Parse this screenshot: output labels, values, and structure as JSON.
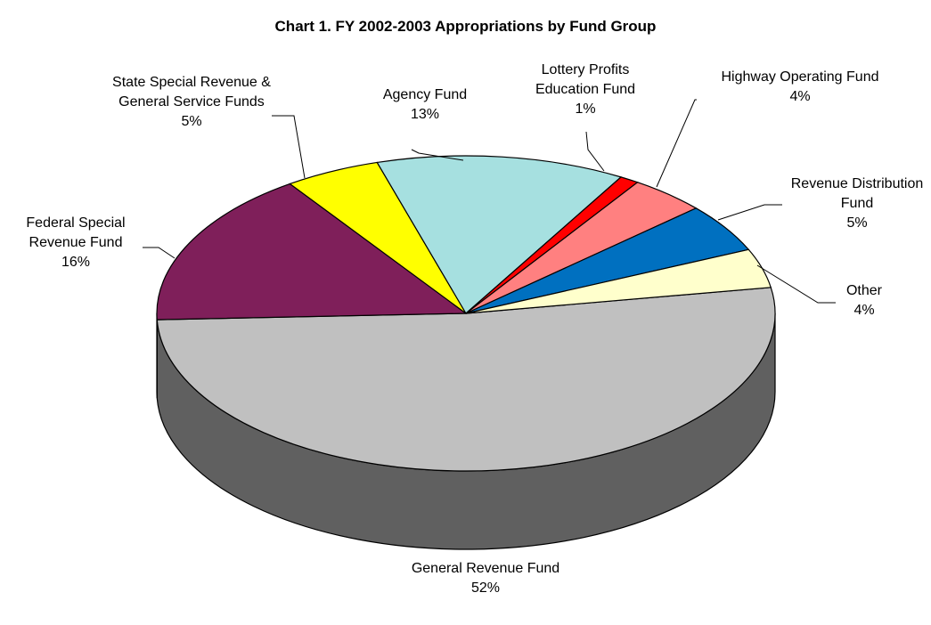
{
  "chart_data": {
    "type": "pie3d",
    "title": "Chart 1.  FY 2002-2003 Appropriations by Fund Group",
    "categories": [
      "General Revenue Fund",
      "Federal Special Revenue Fund",
      "State Special Revenue & General Service Funds",
      "Agency Fund",
      "Lottery Profits Education Fund",
      "Highway Operating Fund",
      "Revenue Distribution Fund",
      "Other"
    ],
    "values": [
      52,
      16,
      5,
      13,
      1,
      4,
      5,
      4
    ],
    "value_labels": [
      "52%",
      "16%",
      "5%",
      "13%",
      "1%",
      "4%",
      "5%",
      "4%"
    ],
    "colors": [
      "#c0c0c0",
      "#7f1f5a",
      "#ffff00",
      "#a6e0e0",
      "#ff0000",
      "#ff8080",
      "#0070c0",
      "#ffffcc"
    ]
  }
}
